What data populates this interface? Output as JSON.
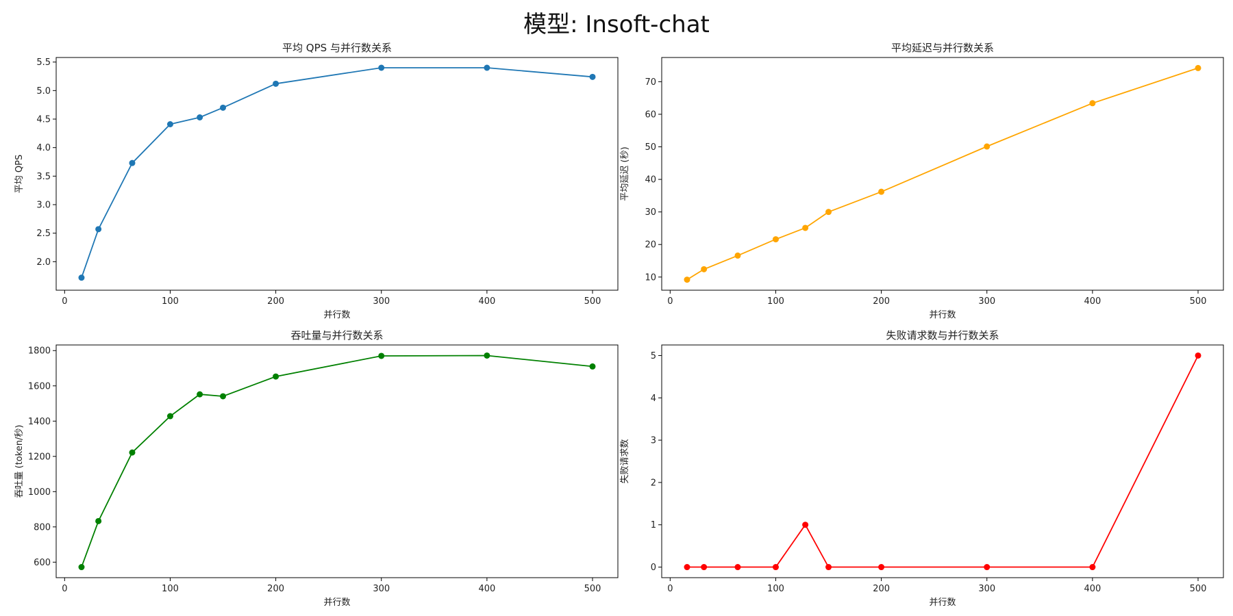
{
  "figure": {
    "suptitle": "模型: Insoft-chat"
  },
  "chart_data": [
    {
      "type": "line",
      "title": "平均 QPS 与并行数关系",
      "xlabel": "并行数",
      "ylabel": "平均 QPS",
      "color": "#1f77b4",
      "marker": "circle",
      "x": [
        16,
        32,
        64,
        100,
        128,
        150,
        200,
        300,
        400,
        500
      ],
      "values": [
        1.72,
        2.57,
        3.73,
        4.41,
        4.53,
        4.7,
        5.12,
        5.4,
        5.4,
        5.24
      ],
      "xlim": [
        -8,
        524
      ],
      "ylim": [
        1.5,
        5.58
      ],
      "xticks": [
        0,
        100,
        200,
        300,
        400,
        500
      ],
      "yticks": [
        2.0,
        2.5,
        3.0,
        3.5,
        4.0,
        4.5,
        5.0,
        5.5
      ],
      "ytick_labels": [
        "2.0",
        "2.5",
        "3.0",
        "3.5",
        "4.0",
        "4.5",
        "5.0",
        "5.5"
      ],
      "grid": false
    },
    {
      "type": "line",
      "title": "平均延迟与并行数关系",
      "xlabel": "并行数",
      "ylabel": "平均延迟 (秒)",
      "color": "#ffa500",
      "marker": "circle",
      "x": [
        16,
        32,
        64,
        100,
        128,
        150,
        200,
        300,
        400,
        500
      ],
      "values": [
        9.2,
        12.4,
        16.6,
        21.6,
        25.1,
        30.0,
        36.2,
        50.1,
        63.4,
        74.2
      ],
      "xlim": [
        -8,
        524
      ],
      "ylim": [
        5.96,
        77.44
      ],
      "xticks": [
        0,
        100,
        200,
        300,
        400,
        500
      ],
      "yticks": [
        10,
        20,
        30,
        40,
        50,
        60,
        70
      ],
      "ytick_labels": [
        "10",
        "20",
        "30",
        "40",
        "50",
        "60",
        "70"
      ],
      "grid": false
    },
    {
      "type": "line",
      "title": "吞吐量与并行数关系",
      "xlabel": "并行数",
      "ylabel": "吞吐量 (token/秒)",
      "color": "#008000",
      "marker": "circle",
      "x": [
        16,
        32,
        64,
        100,
        128,
        150,
        200,
        300,
        400,
        500
      ],
      "values": [
        572,
        833,
        1222,
        1428,
        1552,
        1541,
        1653,
        1770,
        1772,
        1710
      ],
      "xlim": [
        -8,
        524
      ],
      "ylim": [
        512,
        1832
      ],
      "xticks": [
        0,
        100,
        200,
        300,
        400,
        500
      ],
      "yticks": [
        600,
        800,
        1000,
        1200,
        1400,
        1600,
        1800
      ],
      "ytick_labels": [
        "600",
        "800",
        "1000",
        "1200",
        "1400",
        "1600",
        "1800"
      ],
      "grid": false
    },
    {
      "type": "line",
      "title": "失败请求数与并行数关系",
      "xlabel": "并行数",
      "ylabel": "失败请求数",
      "color": "#ff0000",
      "marker": "circle",
      "x": [
        16,
        32,
        64,
        100,
        128,
        150,
        200,
        300,
        400,
        500
      ],
      "values": [
        0,
        0,
        0,
        0,
        1,
        0,
        0,
        0,
        0,
        5
      ],
      "xlim": [
        -8,
        524
      ],
      "ylim": [
        -0.25,
        5.25
      ],
      "xticks": [
        0,
        100,
        200,
        300,
        400,
        500
      ],
      "yticks": [
        0,
        1,
        2,
        3,
        4,
        5
      ],
      "ytick_labels": [
        "0",
        "1",
        "2",
        "3",
        "4",
        "5"
      ],
      "grid": false
    }
  ]
}
